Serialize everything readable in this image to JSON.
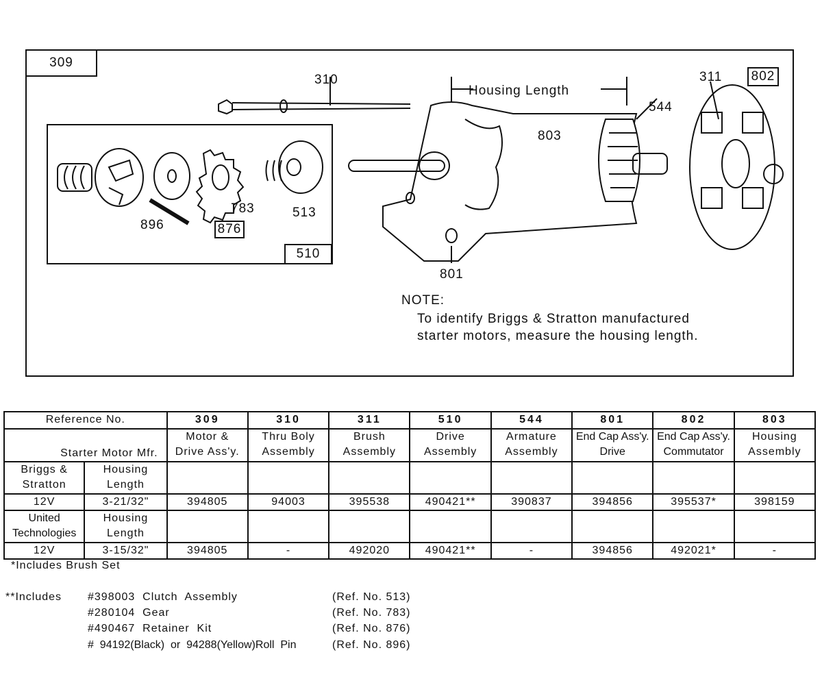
{
  "diagram": {
    "callouts": {
      "c309": "309",
      "c310": "310",
      "c311": "311",
      "c802": "802",
      "c544": "544",
      "c803": "803",
      "c896": "896",
      "c876": "876",
      "c783": "783",
      "c513": "513",
      "c510": "510",
      "c801": "801"
    },
    "housing_length_label": "Housing Length",
    "note_title": "NOTE:",
    "note_lines": [
      "To identify Briggs & Stratton manufactured",
      "starter motors, measure the housing length."
    ]
  },
  "table": {
    "reference_label": "Reference No.",
    "mfr_label": "Starter Motor Mfr.",
    "columns": [
      {
        "ref": "309",
        "desc1": "Motor &",
        "desc2": "Drive Ass'y."
      },
      {
        "ref": "310",
        "desc1": "Thru Boly",
        "desc2": "Assembly"
      },
      {
        "ref": "311",
        "desc1": "Brush",
        "desc2": "Assembly"
      },
      {
        "ref": "510",
        "desc1": "Drive",
        "desc2": "Assembly"
      },
      {
        "ref": "544",
        "desc1": "Armature",
        "desc2": "Assembly"
      },
      {
        "ref": "801",
        "desc1": "End Cap Ass'y.",
        "desc2": "Drive"
      },
      {
        "ref": "802",
        "desc1": "End Cap Ass'y.",
        "desc2": "Commutator"
      },
      {
        "ref": "803",
        "desc1": "Housing",
        "desc2": "Assembly"
      }
    ],
    "rows": [
      {
        "mfr1": "Briggs &",
        "mfr2": "Stratton",
        "hl1": "Housing",
        "hl2": "Length",
        "voltage": "12V",
        "length": "3-21/32\"",
        "parts": [
          "394805",
          "94003",
          "395538",
          "490421**",
          "390837",
          "394856",
          "395537*",
          "398159"
        ]
      },
      {
        "mfr1": "United",
        "mfr2": "Technologies",
        "hl1": "Housing",
        "hl2": "Length",
        "voltage": "12V",
        "length": "3-15/32\"",
        "parts": [
          "394805",
          "-",
          "492020",
          "490421**",
          "-",
          "394856",
          "492021*",
          "-"
        ]
      }
    ]
  },
  "footnotes": {
    "single": "*Includes Brush Set",
    "double_label": "**Includes",
    "items": [
      {
        "part": "#398003  Clutch  Assembly",
        "ref": "(Ref. No. 513)"
      },
      {
        "part": "#280104  Gear",
        "ref": "(Ref. No. 783)"
      },
      {
        "part": "#490467  Retainer  Kit",
        "ref": "(Ref. No. 876)"
      },
      {
        "part": "#  94192(Black)  or  94288(Yellow)Roll  Pin",
        "ref": "(Ref. No. 896)"
      }
    ]
  }
}
